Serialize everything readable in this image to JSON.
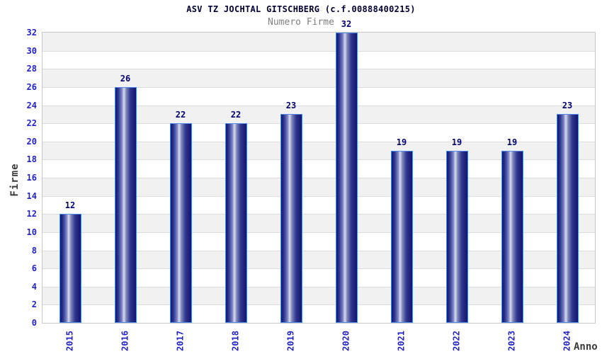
{
  "chart_data": {
    "type": "bar",
    "title": "ASV TZ JOCHTAL GITSCHBERG (c.f.00888400215)",
    "subtitle": "Numero Firme",
    "xlabel": "Anno",
    "ylabel": "Firme",
    "categories": [
      "2015",
      "2016",
      "2017",
      "2018",
      "2019",
      "2020",
      "2021",
      "2022",
      "2023",
      "2024"
    ],
    "values": [
      12,
      26,
      22,
      22,
      23,
      32,
      19,
      19,
      19,
      23
    ],
    "ylim": [
      0,
      32
    ],
    "ytick_step": 2,
    "yticks": [
      0,
      2,
      4,
      6,
      8,
      10,
      12,
      14,
      16,
      18,
      20,
      22,
      24,
      26,
      28,
      30,
      32
    ],
    "legend": "none",
    "grid": "horizontal-bands-alternating",
    "colors": {
      "tick_label": "#2222cc",
      "value_label": "#00006e",
      "title": "#000033",
      "subtitle": "#7f7f7f",
      "axis_title": "#3a3a3a",
      "bar_dark": "#14146a",
      "bar_mid": "#303690",
      "bar_mid_light": "#8089c0",
      "bar_light": "#d9dcf0",
      "bar_border": "#4e8be8",
      "band_gray": "#f1f1f1",
      "band_white": "#ffffff",
      "grid_line": "#dcdcdc",
      "plot_border": "#c8c8c8",
      "background": "#ffffff"
    }
  }
}
